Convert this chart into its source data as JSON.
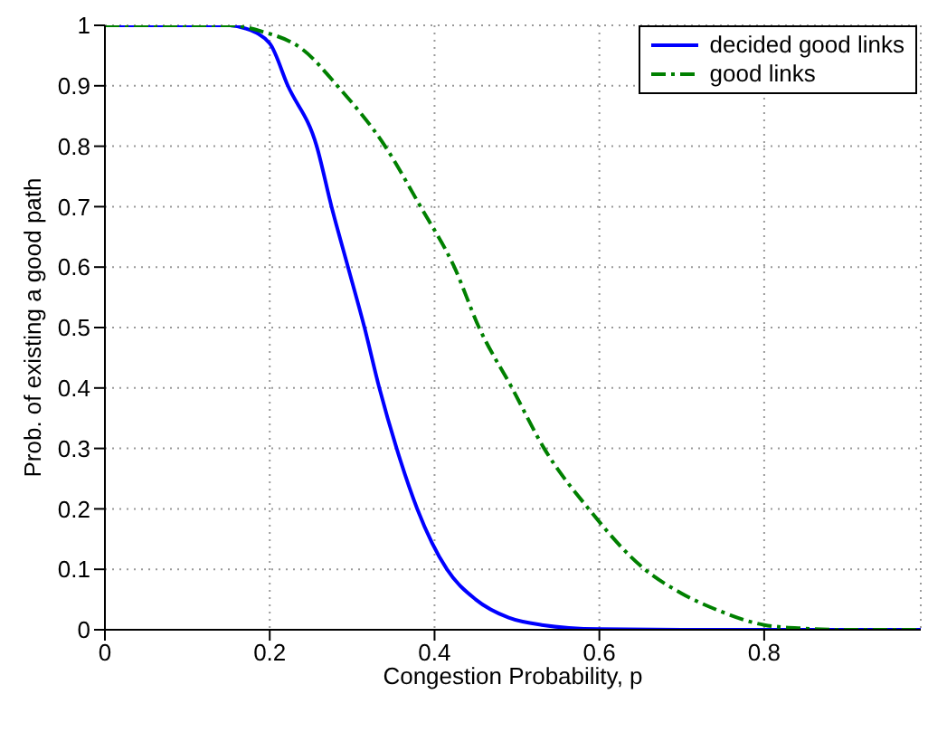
{
  "chart_data": {
    "type": "line",
    "xlabel": "Congestion Probability,  p",
    "ylabel": "Prob. of existing a good path",
    "xlim": [
      0,
      0.99
    ],
    "ylim": [
      0,
      1
    ],
    "xticks": [
      0,
      0.2,
      0.4,
      0.6,
      0.8
    ],
    "yticks": [
      0,
      0.1,
      0.2,
      0.3,
      0.4,
      0.5,
      0.6,
      0.7,
      0.8,
      0.9,
      1
    ],
    "grid": true,
    "legend": "top right",
    "series": [
      {
        "name": "decided good links",
        "color": "#0000ff",
        "line_style": "solid",
        "x": [
          0,
          0.1,
          0.15,
          0.17,
          0.2,
          0.222,
          0.257,
          0.275,
          0.295,
          0.315,
          0.333,
          0.354,
          0.379,
          0.415,
          0.45,
          0.49,
          0.53,
          0.6,
          0.7,
          0.8,
          0.9,
          0.99
        ],
        "values": [
          1,
          1,
          1,
          0.995,
          0.97,
          0.9,
          0.8,
          0.7,
          0.6,
          0.5,
          0.4,
          0.3,
          0.2,
          0.1,
          0.05,
          0.02,
          0.008,
          0.001,
          0,
          0,
          0,
          0
        ]
      },
      {
        "name": "good links",
        "color": "#008000",
        "line_style": "dashdot",
        "x": [
          0,
          0.1,
          0.15,
          0.19,
          0.24,
          0.282,
          0.34,
          0.383,
          0.424,
          0.454,
          0.494,
          0.533,
          0.587,
          0.655,
          0.7,
          0.748,
          0.8,
          0.85,
          0.9,
          0.99
        ],
        "values": [
          1,
          1,
          1,
          0.99,
          0.96,
          0.9,
          0.8,
          0.7,
          0.6,
          0.5,
          0.4,
          0.3,
          0.2,
          0.1,
          0.06,
          0.03,
          0.008,
          0.002,
          0,
          0
        ]
      }
    ]
  }
}
